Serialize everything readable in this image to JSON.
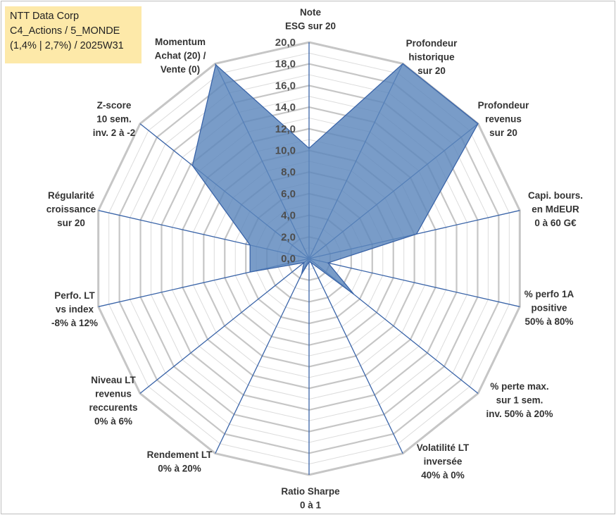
{
  "title_box": {
    "line1": "NTT Data Corp",
    "line2": "C4_Actions / 5_MONDE",
    "line3": "(1,4% | 2,7%) / 2025W31"
  },
  "chart_data": {
    "type": "radar",
    "r_range": [
      0,
      20
    ],
    "r_ticks": [
      "0,0",
      "2,0",
      "4,0",
      "6,0",
      "8,0",
      "10,0",
      "12,0",
      "14,0",
      "16,0",
      "18,0",
      "20,0"
    ],
    "grid": true,
    "colors": {
      "fill": "#5b86bc",
      "line": "#3a64a8",
      "grid_major": "#c6c6c6",
      "grid_minor": "#dcdcdc"
    },
    "axes": [
      {
        "label": [
          "Note",
          "ESG sur 20"
        ],
        "value": 10.2
      },
      {
        "label": [
          "Profondeur",
          "historique",
          "sur 20"
        ],
        "value": 20.0
      },
      {
        "label": [
          "Profondeur",
          "revenus",
          "sur 20"
        ],
        "value": 20.0
      },
      {
        "label": [
          "Capi. bours.",
          "en MdEUR",
          "0 à 60 G€"
        ],
        "value": 10.2
      },
      {
        "label": [
          "% perfo 1A",
          "positive",
          "50% à 80%"
        ],
        "value": 1.8
      },
      {
        "label": [
          "% perte max.",
          "sur 1 sem.",
          "inv. 50% à 20%"
        ],
        "value": 5.3
      },
      {
        "label": [
          "Volatilité LT",
          "inversée",
          "40% à 0%"
        ],
        "value": 0.4
      },
      {
        "label": [
          "Ratio Sharpe",
          "0 à 1"
        ],
        "value": 0.3
      },
      {
        "label": [
          "Rendement LT",
          "0% à 20%"
        ],
        "value": 1.6
      },
      {
        "label": [
          "Niveau LT",
          "revenus",
          "reccurents",
          "0% à 6%"
        ],
        "value": 0.6
      },
      {
        "label": [
          "Perfo. LT",
          "vs index",
          "-8% à 12%"
        ],
        "value": 5.6
      },
      {
        "label": [
          "Régularité",
          "croissance",
          "sur 20"
        ],
        "value": 5.6
      },
      {
        "label": [
          "Z-score",
          "10 sem.",
          "inv. 2 à -2"
        ],
        "value": 13.8
      },
      {
        "label": [
          "Momentum",
          "Achat (20) /",
          "Vente (0)"
        ],
        "value": 19.9
      }
    ]
  }
}
